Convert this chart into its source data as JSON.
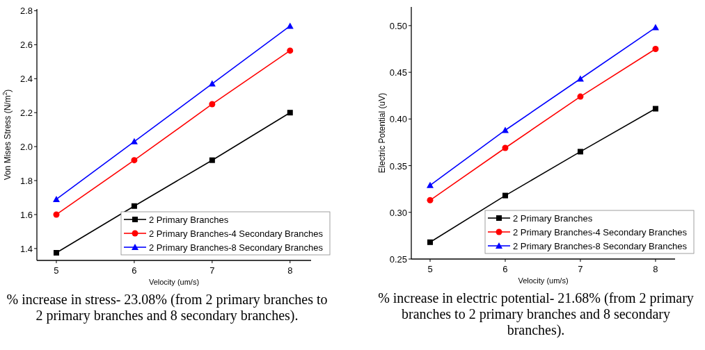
{
  "chart_data": [
    {
      "type": "line",
      "xlabel": "Velocity (um/s)",
      "ylabel": "Von Mises  Stress (N/m$^{2}$)",
      "x": [
        5,
        6,
        7,
        8
      ],
      "xlim": [
        4.75,
        8.27
      ],
      "xticks": [
        5,
        6,
        7,
        8
      ],
      "ylim": [
        1.33,
        2.81
      ],
      "yticks": [
        {
          "value": 1.4,
          "label": "1.4"
        },
        {
          "value": 1.6,
          "label": "1.6"
        },
        {
          "value": 1.8,
          "label": "1.8"
        },
        {
          "value": 2.0,
          "label": "2.0"
        },
        {
          "value": 2.2,
          "label": "2.2"
        },
        {
          "value": 2.4,
          "label": "2.4"
        },
        {
          "value": 2.6,
          "label": "2.6"
        },
        {
          "value": 2.8,
          "label": "2.8"
        }
      ],
      "legend": "bottom right",
      "grid": false,
      "series": [
        {
          "name": "2 Primary Branches",
          "color": "#000000",
          "marker": "square",
          "values": [
            1.375,
            1.65,
            1.92,
            2.2
          ]
        },
        {
          "name": "2 Primary Branches-4 Secondary Branches",
          "color": "#ff0000",
          "marker": "circle",
          "values": [
            1.6,
            1.92,
            2.25,
            2.565
          ]
        },
        {
          "name": "2 Primary Branches-8 Secondary Branches",
          "color": "#0000ff",
          "marker": "triangle",
          "values": [
            1.69,
            2.03,
            2.37,
            2.71
          ]
        }
      ],
      "annotations": [
        "% increase in stress- 23.08% (from 2 primary branches to 2 primary branches and 8 secondary branches)."
      ]
    },
    {
      "type": "line",
      "xlabel": "Velocity (um/s)",
      "ylabel": "Electric Potential (uV)",
      "x": [
        5,
        6,
        7,
        8
      ],
      "xlim": [
        4.75,
        8.26
      ],
      "xticks": [
        5,
        6,
        7,
        8
      ],
      "ylim": [
        0.25,
        0.52
      ],
      "yticks": [
        {
          "value": 0.25,
          "label": "0.25"
        },
        {
          "value": 0.3,
          "label": "0.30"
        },
        {
          "value": 0.35,
          "label": "0.35"
        },
        {
          "value": 0.4,
          "label": "0.40"
        },
        {
          "value": 0.45,
          "label": "0.45"
        },
        {
          "value": 0.5,
          "label": "0.50"
        }
      ],
      "legend": "bottom right",
      "grid": false,
      "series": [
        {
          "name": "2 Primary Branches",
          "color": "#000000",
          "marker": "square",
          "values": [
            0.268,
            0.318,
            0.365,
            0.411
          ]
        },
        {
          "name": "2 Primary Branches-4 Secondary Branches",
          "color": "#ff0000",
          "marker": "circle",
          "values": [
            0.313,
            0.369,
            0.424,
            0.475
          ]
        },
        {
          "name": "2 Primary Branches-8 Secondary Branches",
          "color": "#0000ff",
          "marker": "triangle",
          "values": [
            0.329,
            0.388,
            0.443,
            0.498
          ]
        }
      ],
      "annotations": [
        "% increase in electric potential- 21.68% (from 2 primary branches to 2 primary branches and 8 secondary branches)."
      ]
    }
  ]
}
